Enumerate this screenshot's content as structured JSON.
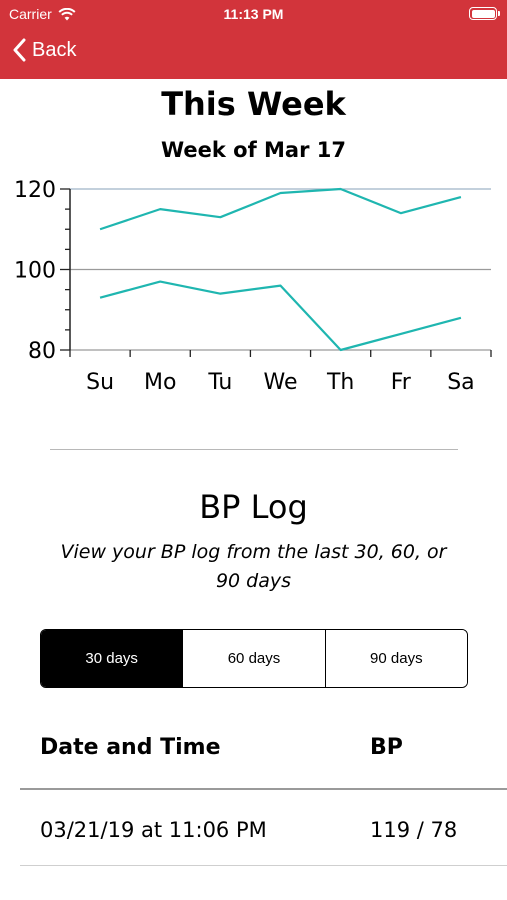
{
  "status_bar": {
    "carrier": "Carrier",
    "time": "11:13 PM",
    "icons": [
      "wifi-icon",
      "battery-icon"
    ]
  },
  "nav": {
    "back_label": "Back",
    "icon": "chevron-left-icon",
    "color": "#d2343b"
  },
  "week": {
    "title": "This Week",
    "subtitle": "Week of Mar 17"
  },
  "chart_data": {
    "type": "line",
    "categories": [
      "Su",
      "Mo",
      "Tu",
      "We",
      "Th",
      "Fr",
      "Sa"
    ],
    "series": [
      {
        "values": [
          110,
          115,
          113,
          119,
          120,
          114,
          118
        ]
      },
      {
        "values": [
          93,
          97,
          94,
          96,
          80,
          84,
          88
        ]
      }
    ],
    "ylim": [
      80,
      120
    ],
    "yticks": [
      80,
      100,
      120
    ],
    "ytick_labels": [
      "80",
      "100",
      "120"
    ],
    "grid": true,
    "line_color": "#1fb6b0"
  },
  "bp_log": {
    "title": "BP Log",
    "description": "View your BP log from the last 30, 60, or 90 days",
    "options": [
      {
        "label": "30 days",
        "selected": true
      },
      {
        "label": "60 days",
        "selected": false
      },
      {
        "label": "90 days",
        "selected": false
      }
    ]
  },
  "table": {
    "headers": {
      "date": "Date and Time",
      "bp": "BP"
    },
    "rows": [
      {
        "date": "03/21/19 at 11:06 PM",
        "bp": "119 / 78"
      }
    ]
  }
}
